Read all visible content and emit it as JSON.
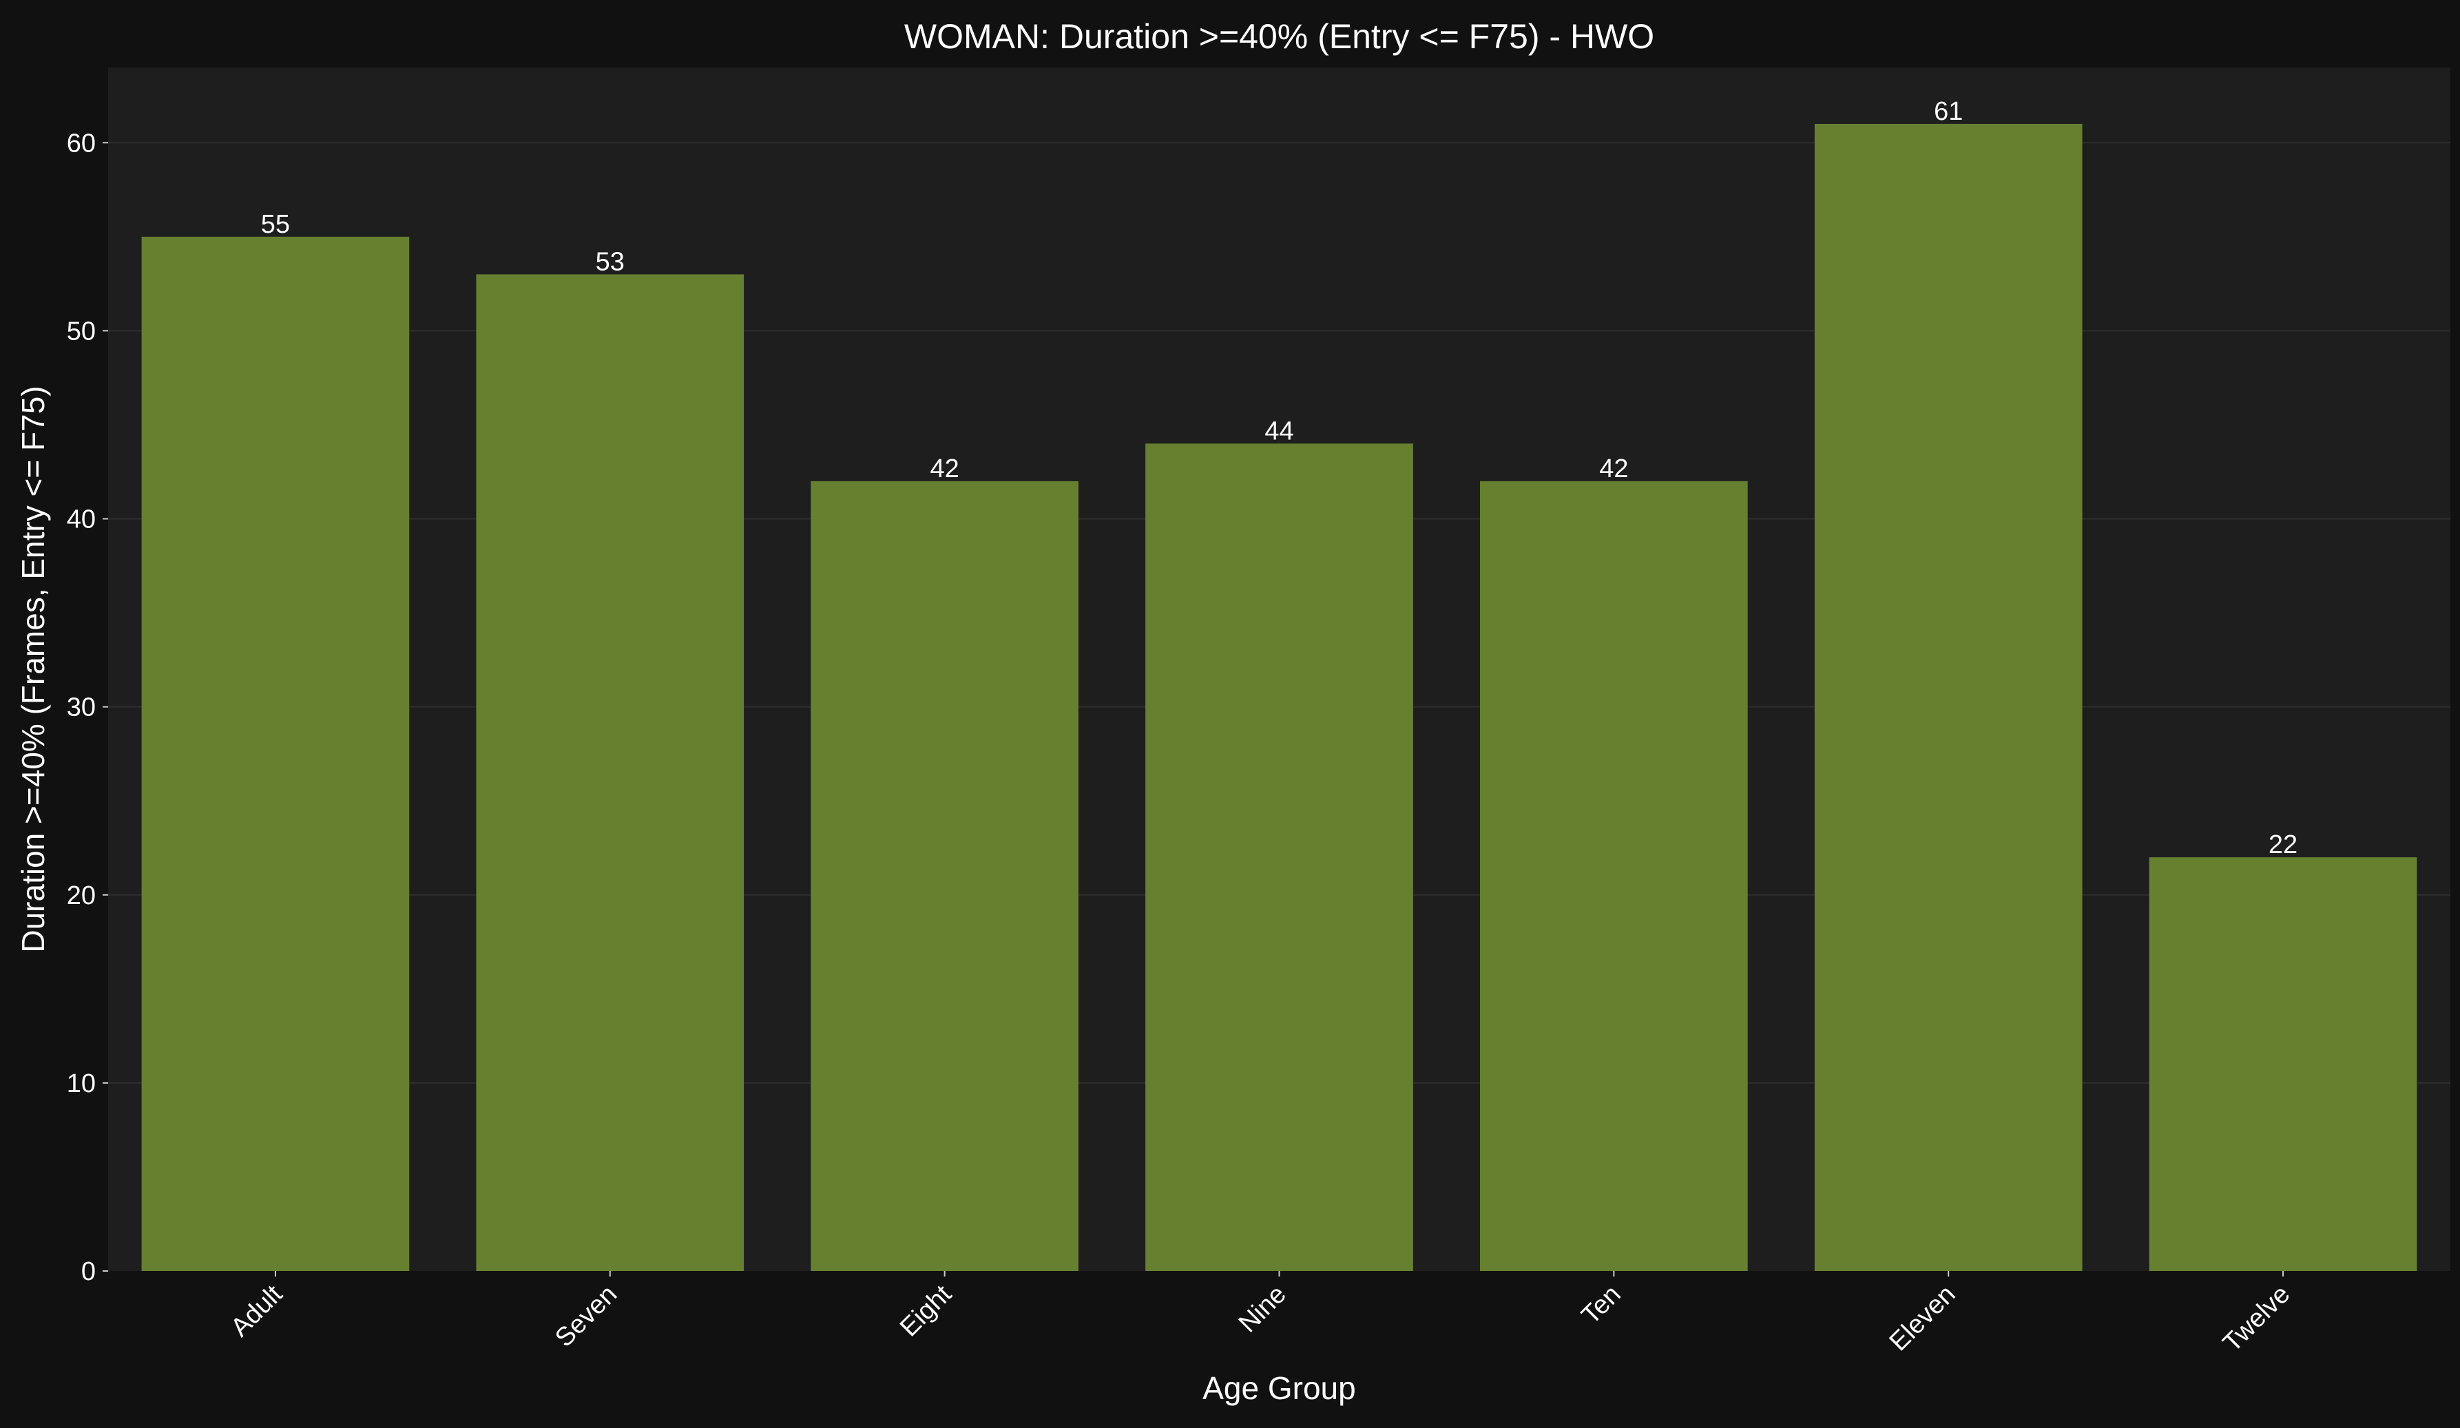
{
  "chart_data": {
    "type": "bar",
    "title": "WOMAN: Duration >=40% (Entry <= F75) - HWO",
    "xlabel": "Age Group",
    "ylabel": "Duration >=40% (Frames, Entry <= F75)",
    "categories": [
      "Adult",
      "Seven",
      "Eight",
      "Nine",
      "Ten",
      "Eleven",
      "Twelve"
    ],
    "values": [
      55,
      53,
      42,
      44,
      42,
      61,
      22
    ],
    "ylim": [
      0,
      64
    ],
    "yticks": [
      0,
      10,
      20,
      30,
      40,
      50,
      60
    ],
    "grid": true,
    "legend": "none",
    "colors": {
      "figure_background": "#111111",
      "plot_background": "#1e1e1e",
      "bar": "#668030",
      "grid": "#2e2e2e",
      "text": "#ffffff"
    }
  }
}
